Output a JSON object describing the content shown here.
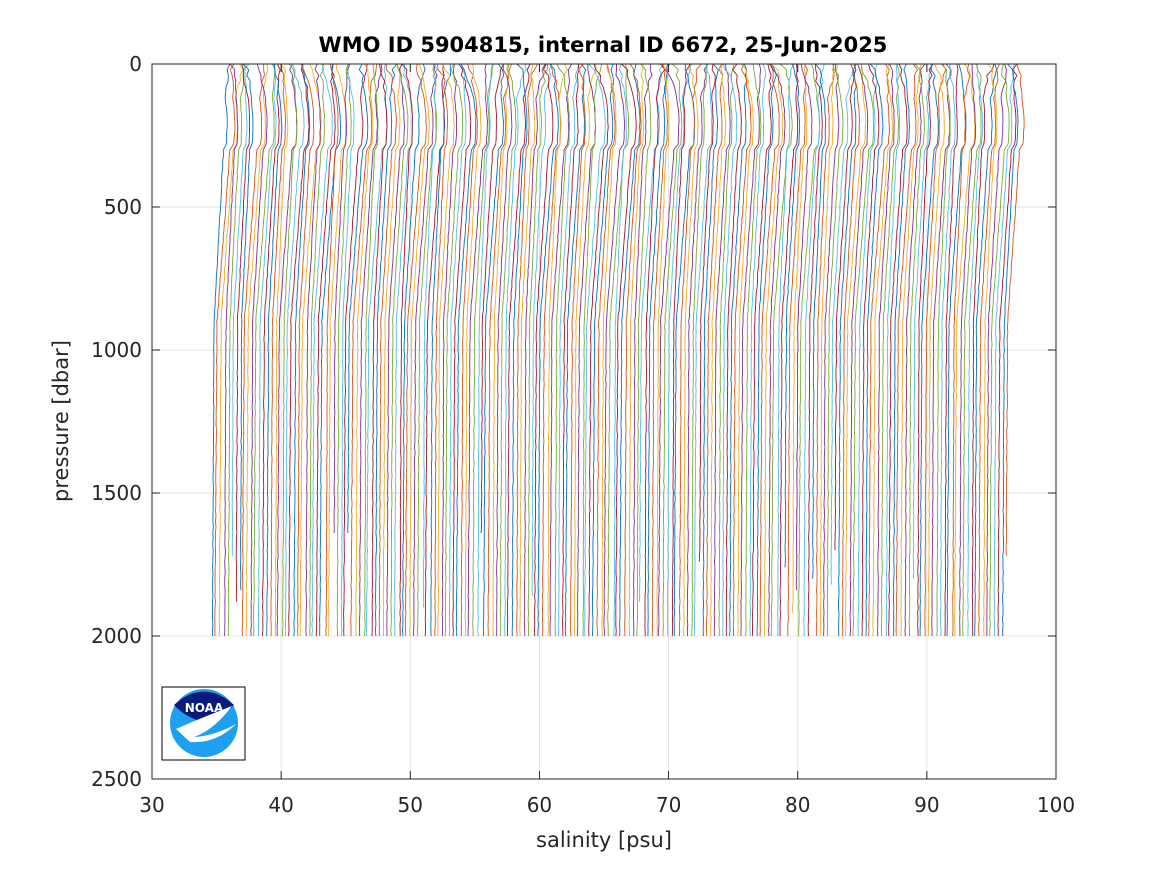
{
  "chart_data": {
    "type": "line",
    "title": "WMO ID 5904815, internal ID 6672, 25-Jun-2025",
    "xlabel": "salinity [psu]",
    "ylabel": "pressure [dbar]",
    "xlim": [
      30,
      100
    ],
    "ylim": [
      0,
      2500
    ],
    "y_reversed": true,
    "x_ticks": [
      "30",
      "40",
      "50",
      "60",
      "70",
      "80",
      "90",
      "100"
    ],
    "y_ticks": [
      "0",
      "500",
      "1000",
      "1500",
      "2000",
      "2500"
    ],
    "grid": true,
    "legend": "none",
    "profile_offset_start": 35.0,
    "profile_offset_end": 96.5,
    "profile_count": 205,
    "max_pressure": 2000,
    "series_colors": [
      "#0072BD",
      "#D95319",
      "#EDB120",
      "#7E2F8E",
      "#77AC30",
      "#4DBEEE",
      "#A2142F"
    ]
  },
  "logo": {
    "name": "noaa-logo",
    "text": "NOAA",
    "colors": {
      "dark": "#0a1a7a",
      "light": "#1ea0f0"
    }
  }
}
